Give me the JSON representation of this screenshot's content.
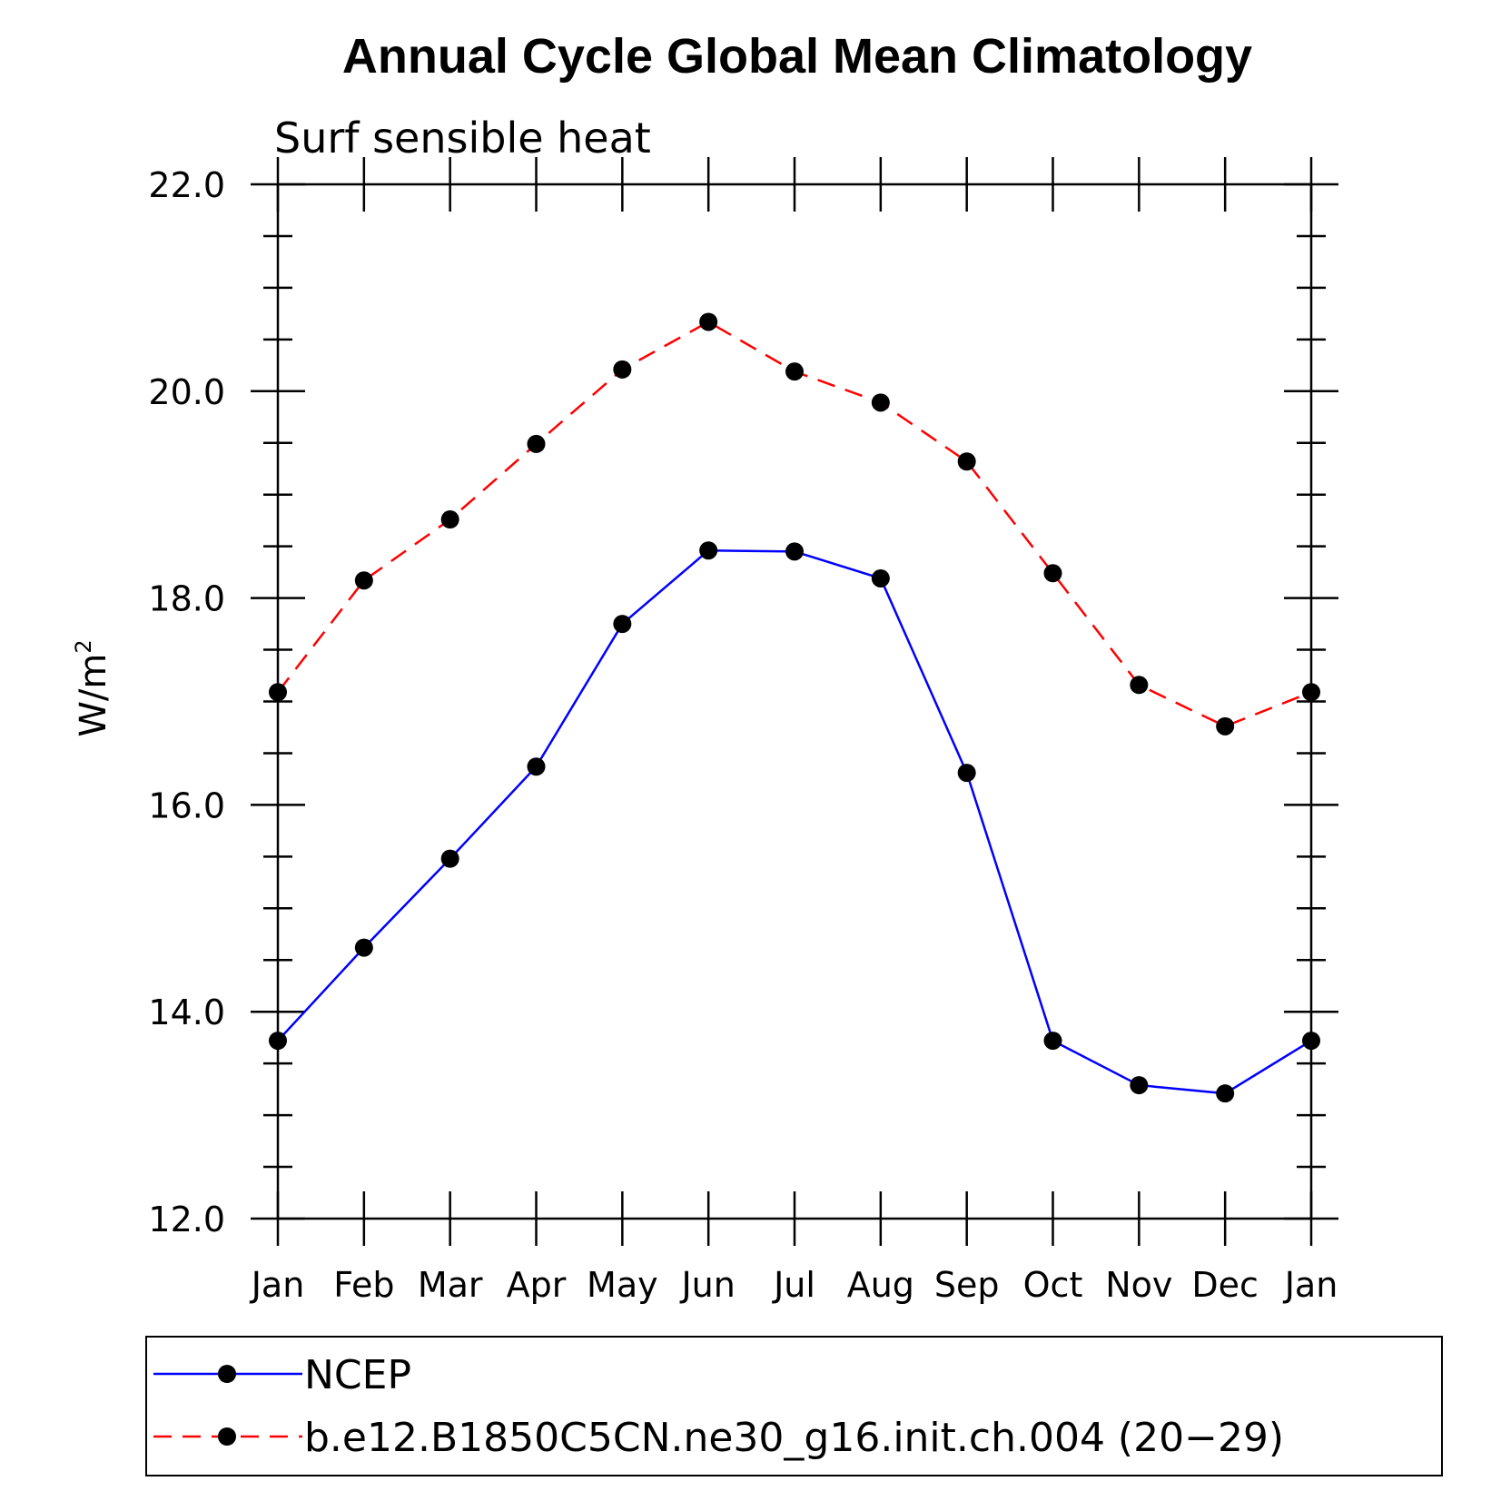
{
  "chart_data": {
    "type": "line",
    "title": "Annual Cycle Global Mean Climatology",
    "subtitle": "Surf sensible heat",
    "ylabel_main": "W/m",
    "ylabel_sup": "2",
    "xlabel": "",
    "categories": [
      "Jan",
      "Feb",
      "Mar",
      "Apr",
      "May",
      "Jun",
      "Jul",
      "Aug",
      "Sep",
      "Oct",
      "Nov",
      "Dec",
      "Jan"
    ],
    "ylim": [
      12.0,
      22.0
    ],
    "yticks": [
      12.0,
      14.0,
      16.0,
      18.0,
      20.0,
      22.0
    ],
    "ytick_labels": [
      "12.0",
      "14.0",
      "16.0",
      "18.0",
      "20.0",
      "22.0"
    ],
    "yminor_step": 0.5,
    "grid": false,
    "legend_position": "bottom",
    "series": [
      {
        "name": "NCEP",
        "color": "#0000ff",
        "dash": "solid",
        "marker": "filled-circle",
        "values": [
          13.72,
          14.62,
          15.48,
          16.37,
          17.75,
          18.46,
          18.45,
          18.19,
          16.31,
          13.72,
          13.29,
          13.21,
          13.72
        ]
      },
      {
        "name": "b.e12.B1850C5CN.ne30_g16.init.ch.004 (20−29)",
        "color": "#ff0000",
        "dash": "dashed",
        "marker": "filled-circle",
        "values": [
          17.09,
          18.17,
          18.76,
          19.49,
          20.21,
          20.67,
          20.19,
          19.89,
          19.32,
          18.24,
          17.16,
          16.76,
          17.09
        ]
      }
    ]
  }
}
